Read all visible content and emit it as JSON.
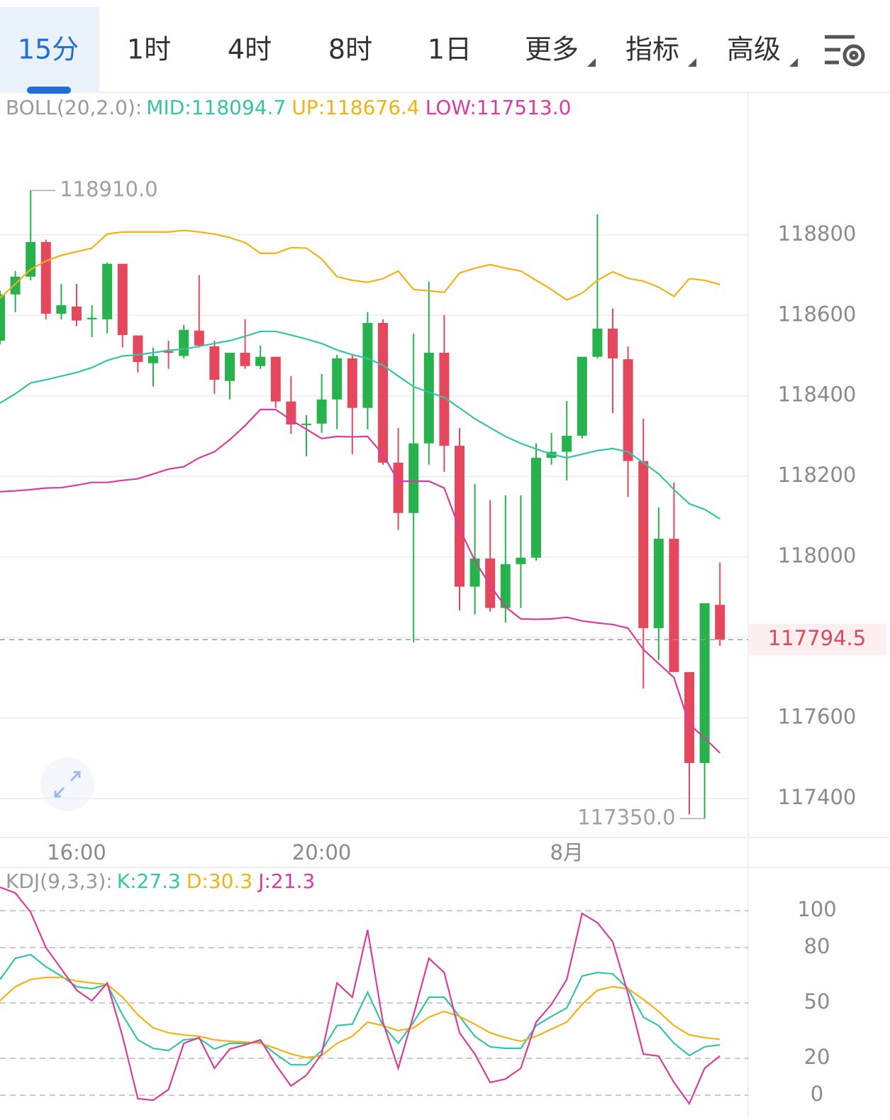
{
  "tabs": [
    {
      "label": "15分",
      "active": true
    },
    {
      "label": "1时"
    },
    {
      "label": "4时"
    },
    {
      "label": "8时"
    },
    {
      "label": "1日"
    },
    {
      "label": "更多",
      "menu": true
    },
    {
      "label": "指标",
      "menu": true
    },
    {
      "label": "高级",
      "menu": true
    }
  ],
  "chart_data": [
    {
      "type": "candlestick",
      "indicator": "BOLL(20,2.0):",
      "categories": [
        null,
        null,
        null,
        null,
        null,
        "16:00",
        null,
        null,
        null,
        null,
        null,
        null,
        null,
        null,
        null,
        null,
        null,
        null,
        null,
        null,
        null,
        "20:00",
        null,
        null,
        null,
        null,
        null,
        null,
        null,
        null,
        null,
        null,
        null,
        null,
        null,
        null,
        null,
        "8月",
        null,
        null,
        null,
        null,
        null,
        null,
        null,
        null,
        null,
        null
      ],
      "open": [
        118537,
        118652,
        118696,
        118782,
        118604,
        118622,
        118590,
        118590,
        118728,
        118550,
        118481,
        118511,
        118499,
        118562,
        118523,
        118437,
        118507,
        118474,
        118497,
        118386,
        118328,
        118331,
        118391,
        118493,
        118370,
        118581,
        118234,
        118109,
        118282,
        118507,
        118276,
        117926,
        117996,
        117873,
        117982,
        117998,
        118246,
        118261,
        118301,
        118497,
        118567,
        118491,
        118238,
        117823,
        118045,
        117714,
        117488,
        117881
      ],
      "high": [
        118661,
        118710,
        118910,
        118788,
        118678,
        118678,
        118625,
        118731,
        118728,
        118550,
        118520,
        118537,
        118576,
        118700,
        118537,
        118507,
        118590,
        118525,
        118497,
        118449,
        118352,
        118454,
        118502,
        118502,
        118608,
        118590,
        118320,
        118555,
        118684,
        118601,
        118320,
        118181,
        118141,
        118153,
        118153,
        118282,
        118308,
        118387,
        118497,
        118851,
        118617,
        118523,
        118343,
        118123,
        118185,
        117714,
        117885,
        117986
      ],
      "low": [
        118528,
        118608,
        118687,
        118590,
        118590,
        118573,
        118546,
        118555,
        118520,
        118458,
        118423,
        118467,
        118493,
        118520,
        118405,
        118391,
        118467,
        118467,
        118370,
        118305,
        118250,
        118308,
        118317,
        118255,
        118317,
        118229,
        118067,
        117788,
        118229,
        118211,
        117867,
        117857,
        117864,
        117837,
        117873,
        117991,
        118229,
        118190,
        118294,
        118493,
        118357,
        118149,
        117673,
        117744,
        117714,
        117360,
        117350,
        117779
      ],
      "close": [
        118652,
        118696,
        118782,
        118604,
        118625,
        118587,
        118594,
        118728,
        118551,
        118484,
        118499,
        118507,
        118564,
        118525,
        118440,
        118507,
        118474,
        118497,
        118386,
        118329,
        118331,
        118391,
        118493,
        118370,
        118581,
        118234,
        118109,
        118282,
        118507,
        118276,
        117926,
        117996,
        117873,
        117982,
        117998,
        118246,
        118261,
        118301,
        118497,
        118567,
        118493,
        118238,
        117823,
        118045,
        117714,
        117488,
        117885,
        117794.5
      ],
      "up_color": "#27b24e",
      "down_color": "#e5485c",
      "series": [
        {
          "name": "MID:118094.7",
          "color": "#35c4a6",
          "values": [
            118382,
            118405,
            118432,
            118440,
            118449,
            118458,
            118470,
            118488,
            118499,
            118502,
            118507,
            118513,
            118516,
            118523,
            118530,
            118537,
            118548,
            118560,
            118560,
            118551,
            118541,
            118530,
            118514,
            118502,
            118493,
            118476,
            118449,
            118423,
            118409,
            118396,
            118370,
            118343,
            118321,
            118299,
            118282,
            118268,
            118255,
            118246,
            118255,
            118264,
            118269,
            118261,
            118234,
            118206,
            118167,
            118132,
            118118,
            118094.7
          ]
        },
        {
          "name": "UP:118676.4",
          "color": "#f0b217",
          "values": [
            118643,
            118678,
            118714,
            118735,
            118749,
            118758,
            118767,
            118802,
            118807,
            118807,
            118807,
            118807,
            118811,
            118807,
            118802,
            118793,
            118781,
            118754,
            118754,
            118768,
            118767,
            118740,
            118696,
            118687,
            118682,
            118691,
            118710,
            118664,
            118661,
            118657,
            118705,
            118717,
            118726,
            118717,
            118710,
            118687,
            118664,
            118638,
            118655,
            118687,
            118708,
            118692,
            118685,
            118670,
            118647,
            118691,
            118687,
            118676.4
          ]
        },
        {
          "name": "LOW:117513.0",
          "color": "#d83c9f",
          "values": [
            118162,
            118164,
            118167,
            118171,
            118172,
            118178,
            118185,
            118185,
            118190,
            118194,
            118206,
            118218,
            118224,
            118246,
            118261,
            118291,
            118326,
            118366,
            118366,
            118340,
            118317,
            118294,
            118299,
            118298,
            118299,
            118255,
            118188,
            118188,
            118188,
            118171,
            118070,
            117991,
            117929,
            117876,
            117846,
            117845,
            117846,
            117850,
            117841,
            117836,
            117832,
            117823,
            117770,
            117735,
            117700,
            117585,
            117550,
            117513
          ]
        }
      ],
      "ylim": [
        117303,
        119154
      ],
      "yticks": [
        117400,
        117600,
        117800,
        118000,
        118200,
        118400,
        118600,
        118800
      ],
      "grid": true,
      "last_price": 117794.5,
      "annotations": [
        {
          "value": 118910,
          "label": "118910.0"
        },
        {
          "value": 117350,
          "label": "117350.0"
        }
      ]
    },
    {
      "type": "line",
      "indicator": "KDJ(9,3,3):",
      "series": [
        {
          "name": "K:27.3",
          "color": "#35c4a6",
          "values": [
            62.7,
            74.2,
            76.2,
            69.6,
            64.6,
            58.8,
            57.7,
            60.0,
            43.5,
            30.0,
            25.4,
            24.2,
            30.0,
            30.8,
            25.0,
            28.1,
            28.1,
            28.8,
            22.3,
            16.5,
            16.5,
            24.2,
            37.7,
            38.5,
            55.8,
            37.7,
            28.1,
            39.6,
            53.1,
            53.1,
            42.7,
            31.9,
            26.2,
            25.4,
            25.4,
            37.7,
            42.7,
            47.3,
            64.6,
            66.5,
            65.8,
            57.7,
            42.3,
            37.7,
            28.1,
            21.5,
            26.2,
            27.3
          ]
        },
        {
          "name": "D:30.3",
          "color": "#f0b217",
          "values": [
            51.2,
            58.8,
            62.7,
            63.8,
            63.8,
            61.9,
            60.8,
            60.0,
            53.1,
            43.5,
            36.5,
            33.8,
            32.7,
            31.9,
            30.0,
            29.2,
            28.8,
            28.1,
            25.4,
            22.3,
            20.4,
            21.5,
            28.1,
            31.9,
            39.6,
            37.7,
            35.0,
            36.5,
            42.3,
            45.4,
            42.7,
            38.5,
            33.8,
            31.2,
            29.2,
            31.9,
            35.8,
            39.6,
            49.2,
            56.9,
            58.8,
            57.7,
            51.9,
            45.4,
            37.7,
            32.7,
            31.2,
            30.3
          ]
        },
        {
          "name": "J:21.3",
          "color": "#d83c9f",
          "values": [
            112.7,
            109.6,
            99.2,
            80.0,
            68.5,
            56.9,
            51.2,
            60.8,
            31.9,
            -1.9,
            -2.7,
            3.1,
            28.1,
            31.2,
            14.6,
            25.0,
            27.3,
            30.0,
            16.5,
            5.0,
            10.8,
            22.3,
            60.8,
            53.1,
            89.6,
            39.6,
            14.6,
            43.5,
            74.2,
            66.5,
            33.8,
            22.3,
            6.9,
            8.8,
            14.6,
            39.6,
            49.2,
            62.7,
            98.5,
            93.5,
            83.1,
            55.0,
            22.3,
            21.2,
            6.9,
            -4.6,
            14.6,
            21.3
          ]
        }
      ],
      "ylim": [
        -11.9,
        123.5
      ],
      "yticks": [
        0,
        20,
        50,
        80,
        100
      ],
      "grid": true,
      "grid_style": "dashed"
    }
  ]
}
